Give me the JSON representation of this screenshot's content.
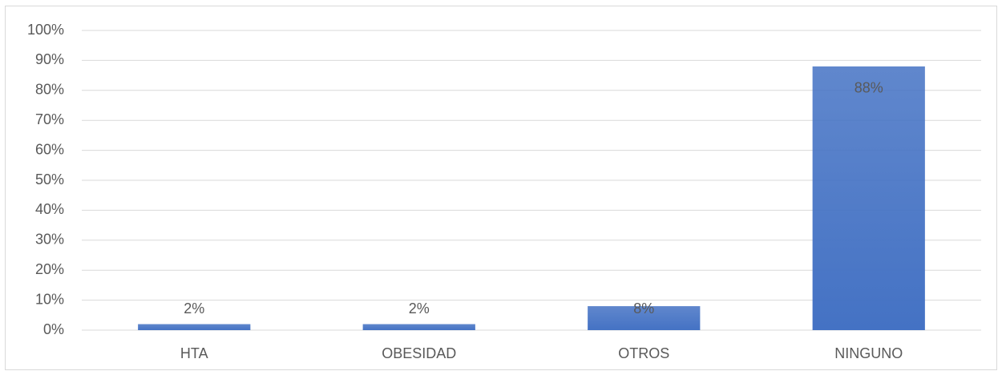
{
  "chart_data": {
    "type": "bar",
    "categories": [
      "HTA",
      "OBESIDAD",
      "OTROS",
      "NINGUNO"
    ],
    "values": [
      2,
      2,
      8,
      88
    ],
    "value_labels": [
      "2%",
      "2%",
      "8%",
      "88%"
    ],
    "color": "#4472c4",
    "ylim": [
      0,
      100
    ],
    "yticks": [
      {
        "value": 0,
        "label": "0%"
      },
      {
        "value": 10,
        "label": "10%"
      },
      {
        "value": 20,
        "label": "20%"
      },
      {
        "value": 30,
        "label": "30%"
      },
      {
        "value": 40,
        "label": "40%"
      },
      {
        "value": 50,
        "label": "50%"
      },
      {
        "value": 60,
        "label": "60%"
      },
      {
        "value": 70,
        "label": "70%"
      },
      {
        "value": 80,
        "label": "80%"
      },
      {
        "value": 90,
        "label": "90%"
      },
      {
        "value": 100,
        "label": "100%"
      }
    ],
    "grid": true
  }
}
